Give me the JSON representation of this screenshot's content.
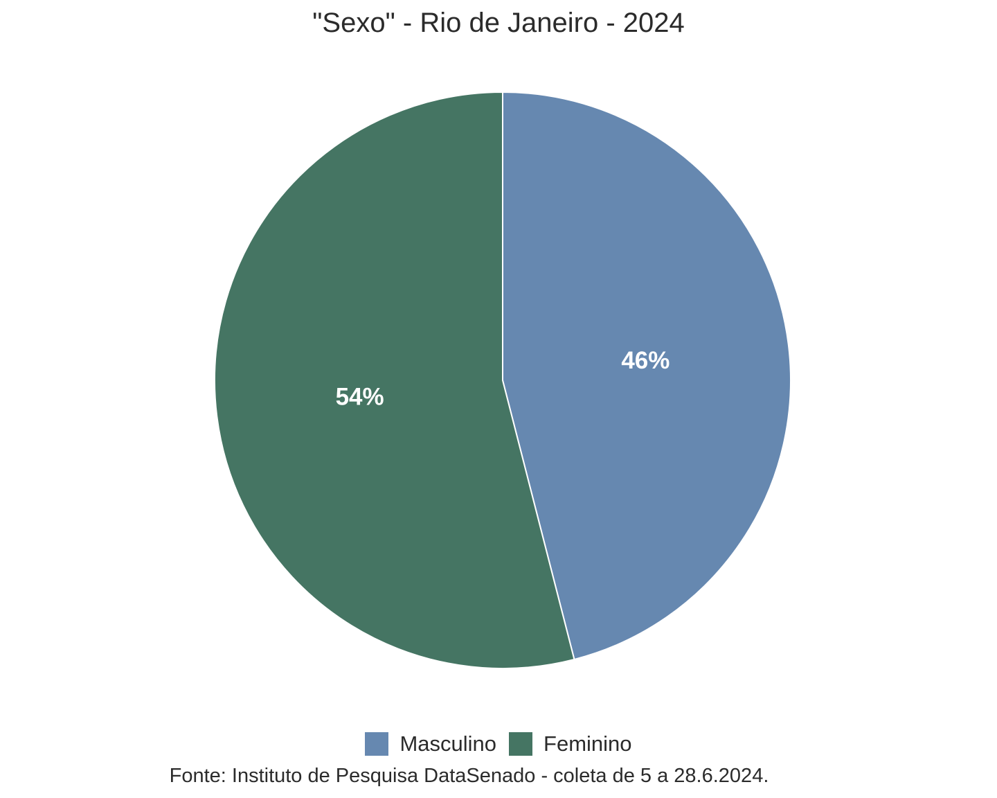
{
  "chart_data": {
    "type": "pie",
    "title": "\"Sexo\" - Rio de Janeiro - 2024",
    "categories": [
      "Masculino",
      "Feminino"
    ],
    "values": [
      46,
      54
    ],
    "value_labels": [
      "46%",
      "54%"
    ],
    "colors": [
      "#6688b0",
      "#457563"
    ],
    "start": "12 o'clock",
    "direction": "clockwise",
    "legend_position": "bottom",
    "caption": "Fonte: Instituto de Pesquisa DataSenado - coleta de 5 a 28.6.2024."
  }
}
